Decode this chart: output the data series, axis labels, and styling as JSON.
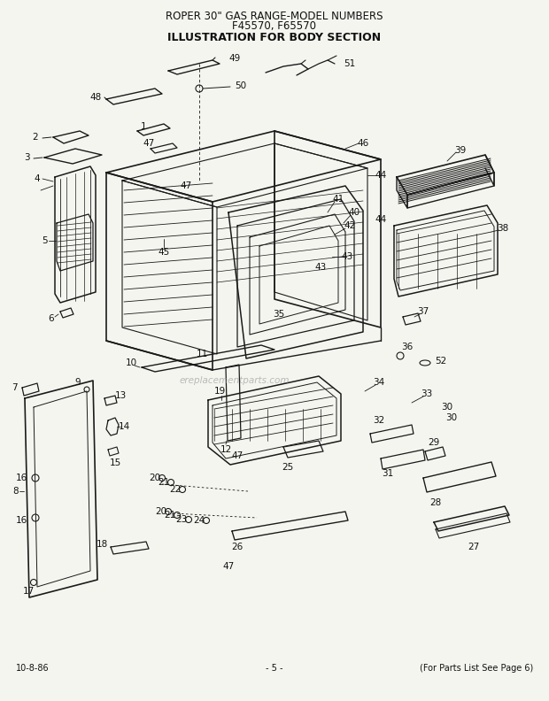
{
  "title_line1": "ROPER 30\" GAS RANGE-MODEL NUMBERS",
  "title_line2": "F45570, F65570",
  "title_line3": "ILLUSTRATION FOR BODY SECTION",
  "footer_left": "10-8-86",
  "footer_center": "- 5 -",
  "footer_right": "(For Parts List See Page 6)",
  "watermark": "ereplacementparts.com",
  "bg_color": "#f5f5f0",
  "line_color": "#1a1a1a",
  "text_color": "#111111",
  "title_fontsize": 8.5,
  "label_fontsize": 7.5,
  "footer_fontsize": 7
}
